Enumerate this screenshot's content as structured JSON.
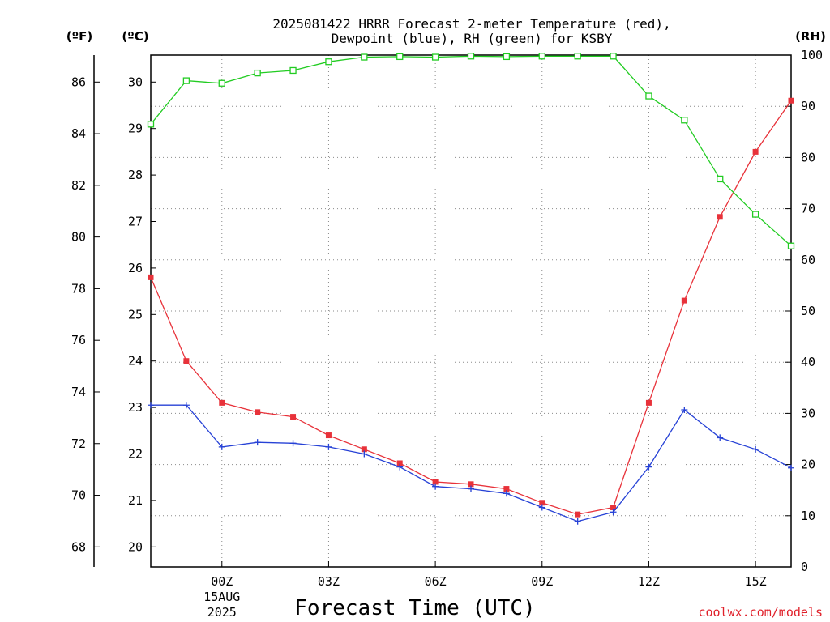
{
  "chart_data": {
    "type": "line",
    "title_line1": "2025081422 HRRR Forecast 2-meter Temperature (red),",
    "title_line2": "Dewpoint (blue), RH (green) for KSBY",
    "xlabel": "Forecast Time (UTC)",
    "credit": "coolwx.com/models",
    "units": {
      "fahrenheit": "(ºF)",
      "celsius": "(ºC)",
      "rh": "(RH)"
    },
    "x_hours": [
      22,
      23,
      24,
      25,
      26,
      27,
      28,
      29,
      30,
      31,
      32,
      33,
      34,
      35,
      36,
      37,
      38,
      39,
      40
    ],
    "x_ticks": [
      {
        "hour": 24,
        "label": "00Z",
        "sub1": "15AUG",
        "sub2": "2025"
      },
      {
        "hour": 27,
        "label": "03Z"
      },
      {
        "hour": 30,
        "label": "06Z"
      },
      {
        "hour": 33,
        "label": "09Z"
      },
      {
        "hour": 36,
        "label": "12Z"
      },
      {
        "hour": 39,
        "label": "15Z"
      }
    ],
    "xlim": [
      22,
      40
    ],
    "celsius_axis": {
      "ylim": [
        19.57,
        30.58
      ],
      "ticks": [
        20,
        21,
        22,
        23,
        24,
        25,
        26,
        27,
        28,
        29,
        30
      ]
    },
    "fahrenheit_axis": {
      "ticks": [
        68,
        70,
        72,
        74,
        76,
        78,
        80,
        82,
        84,
        86
      ]
    },
    "rh_axis": {
      "ylim": [
        0,
        100
      ],
      "ticks": [
        0,
        10,
        20,
        30,
        40,
        50,
        60,
        70,
        80,
        90,
        100
      ]
    },
    "grid": true,
    "series": [
      {
        "name": "Temperature",
        "axis": "celsius",
        "color": "#e8323a",
        "marker": "filled-square",
        "values": [
          25.8,
          24.0,
          23.1,
          22.9,
          22.8,
          22.4,
          22.1,
          21.8,
          21.4,
          21.35,
          21.25,
          20.95,
          20.7,
          20.85,
          23.1,
          25.3,
          27.1,
          28.5,
          29.6
        ]
      },
      {
        "name": "Dewpoint",
        "axis": "celsius",
        "color": "#2742d6",
        "marker": "plus",
        "values": [
          23.05,
          23.05,
          22.15,
          22.25,
          22.23,
          22.15,
          22.0,
          21.72,
          21.3,
          21.25,
          21.15,
          20.85,
          20.55,
          20.75,
          21.72,
          22.95,
          22.35,
          22.1,
          21.7
        ]
      },
      {
        "name": "RH",
        "axis": "rh",
        "color": "#22cc22",
        "marker": "open-square",
        "values": [
          86.5,
          95.0,
          94.5,
          96.5,
          97.0,
          98.7,
          99.6,
          99.7,
          99.6,
          99.8,
          99.7,
          99.8,
          99.8,
          99.8,
          92.0,
          87.3,
          75.8,
          68.9,
          62.7
        ]
      }
    ]
  }
}
